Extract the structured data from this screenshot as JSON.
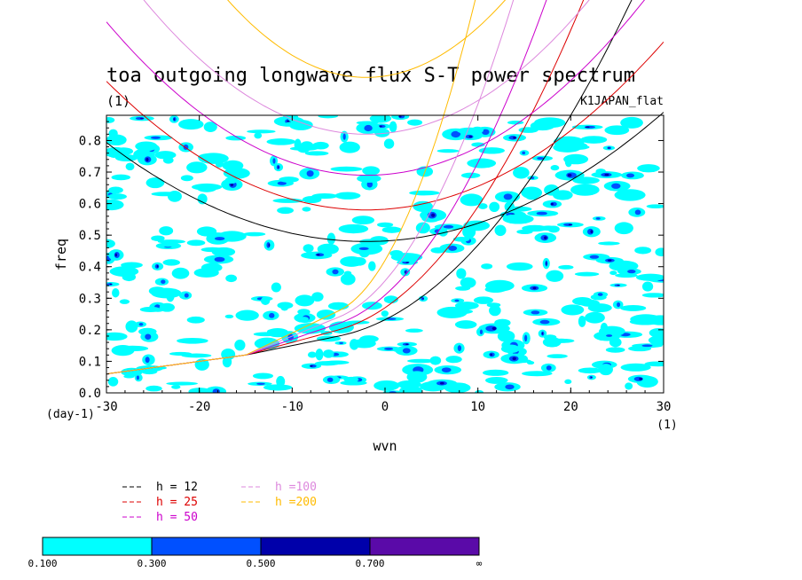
{
  "chart_data": {
    "type": "contour",
    "title": "toa outgoing longwave flux S-T power spectrum",
    "subtitle_left": "(1)",
    "subtitle_right": "K1JAPAN_flat",
    "xlabel": "wvn",
    "ylabel": "freq",
    "x_unit": "(1)",
    "y_unit": "(day-1)",
    "xlim": [
      -30,
      30
    ],
    "ylim": [
      0,
      0.88
    ],
    "x_ticks": [
      "-30",
      "-20",
      "-10",
      "0",
      "10",
      "20",
      "30"
    ],
    "y_ticks": [
      "0.0",
      "0.1",
      "0.2",
      "0.3",
      "0.4",
      "0.5",
      "0.6",
      "0.7",
      "0.8"
    ],
    "contour_levels": [
      "0.100",
      "0.300",
      "0.500",
      "0.700",
      "∞"
    ],
    "contour_colors": [
      "#00ffff",
      "#0050ff",
      "#0000aa",
      "#5a0aa8"
    ],
    "dispersion_curves": [
      {
        "name": "h = 12",
        "h": 12,
        "color": "#000000"
      },
      {
        "name": "h = 25",
        "h": 25,
        "color": "#dd0000"
      },
      {
        "name": "h = 50",
        "h": 50,
        "color": "#cc00cc"
      },
      {
        "name": "h =100",
        "h": 100,
        "color": "#dd88dd"
      },
      {
        "name": "h =200",
        "h": 200,
        "color": "#ffbb00"
      }
    ]
  }
}
